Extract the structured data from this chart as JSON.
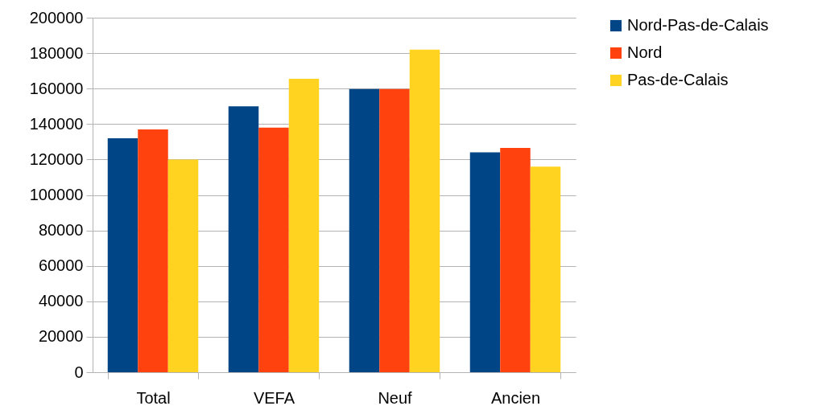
{
  "chart_data": {
    "type": "bar",
    "categories": [
      "Total",
      "VEFA",
      "Neuf",
      "Ancien"
    ],
    "series": [
      {
        "name": "Nord-Pas-de-Calais",
        "color": "#004586",
        "values": [
          132000,
          150000,
          159800,
          124000
        ]
      },
      {
        "name": "Nord",
        "color": "#ff420e",
        "values": [
          137000,
          138000,
          159800,
          126500
        ]
      },
      {
        "name": "Pas-de-Calais",
        "color": "#ffd320",
        "values": [
          120000,
          165500,
          182000,
          116000
        ]
      }
    ],
    "ylim": [
      0,
      200000
    ],
    "yticks": [
      0,
      20000,
      40000,
      60000,
      80000,
      100000,
      120000,
      140000,
      160000,
      180000,
      200000
    ],
    "grid": "y",
    "legend": "right"
  }
}
